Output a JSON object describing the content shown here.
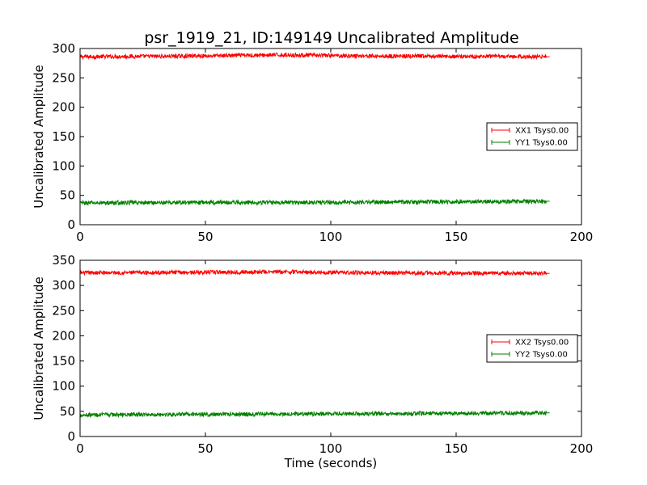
{
  "chart_data": [
    {
      "type": "line",
      "title": "psr_1919_21, ID:149149 Uncalibrated Amplitude",
      "xlabel": "",
      "ylabel": "Uncalibrated Amplitude",
      "xlim": [
        0,
        200
      ],
      "ylim": [
        0,
        300
      ],
      "xticks": [
        "0",
        "50",
        "100",
        "150",
        "200"
      ],
      "yticks": [
        "0",
        "50",
        "100",
        "150",
        "200",
        "250",
        "300"
      ],
      "legend": {
        "placement": "center-right"
      },
      "grid": false,
      "series": [
        {
          "name": "XX1 Tsys0.00",
          "color": "#ff0000",
          "x_range": [
            0,
            186
          ],
          "mean": 287,
          "band": 7,
          "anchors": [
            [
              0,
              286
            ],
            [
              40,
              287
            ],
            [
              80,
              289
            ],
            [
              120,
              287
            ],
            [
              186,
              286
            ]
          ]
        },
        {
          "name": "YY1 Tsys0.00",
          "color": "#008000",
          "x_range": [
            0,
            186
          ],
          "mean": 38,
          "band": 7,
          "anchors": [
            [
              0,
              37
            ],
            [
              50,
              38
            ],
            [
              100,
              38
            ],
            [
              150,
              39
            ],
            [
              186,
              40
            ]
          ]
        }
      ]
    },
    {
      "type": "line",
      "title": "",
      "xlabel": "Time (seconds)",
      "ylabel": "Uncalibrated Amplitude",
      "xlim": [
        0,
        200
      ],
      "ylim": [
        0,
        350
      ],
      "xticks": [
        "0",
        "50",
        "100",
        "150",
        "200"
      ],
      "yticks": [
        "0",
        "50",
        "100",
        "150",
        "200",
        "250",
        "300",
        "350"
      ],
      "legend": {
        "placement": "center-right"
      },
      "grid": false,
      "series": [
        {
          "name": "XX2 Tsys0.00",
          "color": "#ff0000",
          "x_range": [
            0,
            186
          ],
          "mean": 325,
          "band": 8,
          "anchors": [
            [
              0,
              325
            ],
            [
              40,
              326
            ],
            [
              80,
              327
            ],
            [
              120,
              325
            ],
            [
              186,
              324
            ]
          ]
        },
        {
          "name": "YY2 Tsys0.00",
          "color": "#008000",
          "x_range": [
            0,
            186
          ],
          "mean": 45,
          "band": 8,
          "anchors": [
            [
              0,
              43
            ],
            [
              50,
              44
            ],
            [
              100,
              45
            ],
            [
              150,
              46
            ],
            [
              186,
              47
            ]
          ]
        }
      ]
    }
  ]
}
